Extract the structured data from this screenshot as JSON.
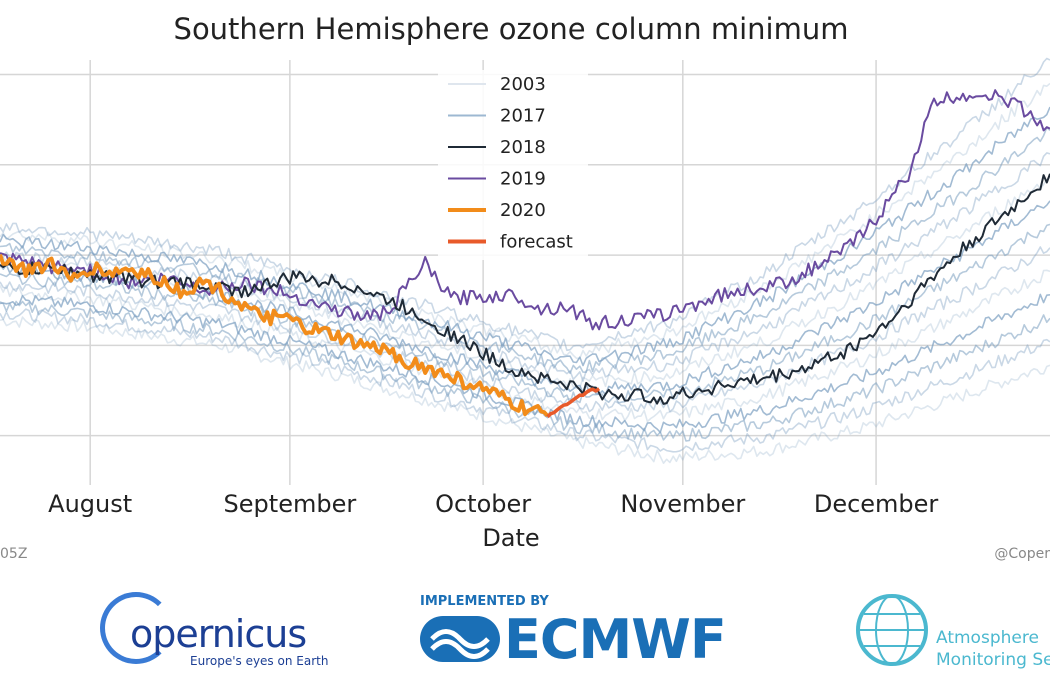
{
  "title": "Southern Hemisphere ozone column minimum",
  "footer": {
    "left": "05Z",
    "right": "@Coper"
  },
  "logos": {
    "copernicus": {
      "word": "opernicus",
      "tagline": "Europe's eyes on Earth"
    },
    "ecmwf": {
      "implemented_by": "IMPLEMENTED BY",
      "name": "ECMWF"
    },
    "cams": {
      "line1": "Atmosphere",
      "line2": "Monitoring Se"
    }
  },
  "colors": {
    "y2003": "#dfe6ee",
    "y2017": "#9db8d2",
    "y2018": "#1f2a36",
    "y2019": "#6a4ba0",
    "y2020": "#f28c1a",
    "forecast": "#e85a2a",
    "background_years": "#7a9ec0",
    "grid": "#d6d6d6"
  },
  "chart_data": {
    "type": "line",
    "title": "Southern Hemisphere ozone column minimum",
    "xlabel": "Date",
    "ylabel": "",
    "x_ticks": [
      "August",
      "September",
      "October",
      "November",
      "December"
    ],
    "x_range_days": [
      -14,
      149
    ],
    "y_range": [
      101,
      328
    ],
    "y_grid_values": [
      120,
      170,
      220,
      270,
      320
    ],
    "grid": true,
    "legend_position": "top-center",
    "legend": [
      "2003",
      "2017",
      "2018",
      "2019",
      "2020",
      "forecast"
    ],
    "series": [
      {
        "name": "2019",
        "x_days": [
          -14,
          -5,
          0,
          6,
          12,
          18,
          24,
          31,
          38,
          42,
          46,
          52,
          56,
          60,
          66,
          70,
          74,
          78,
          84,
          90,
          98,
          108,
          116,
          120,
          123,
          127,
          131,
          138,
          143,
          149
        ],
        "values": [
          218,
          213,
          212,
          205,
          207,
          201,
          205,
          198,
          190,
          186,
          188,
          215,
          196,
          197,
          198,
          190,
          192,
          182,
          184,
          188,
          198,
          205,
          220,
          232,
          245,
          265,
          305,
          310,
          305,
          290
        ]
      },
      {
        "name": "2018",
        "x_days": [
          -14,
          -5,
          0,
          8,
          16,
          24,
          32,
          40,
          50,
          58,
          64,
          72,
          80,
          90,
          98,
          104,
          110,
          118,
          124,
          130,
          137,
          143,
          149
        ],
        "values": [
          212,
          212,
          209,
          206,
          204,
          200,
          208,
          204,
          189,
          172,
          159,
          150,
          143,
          141,
          148,
          151,
          156,
          168,
          183,
          205,
          228,
          245,
          265
        ]
      },
      {
        "name": "2020",
        "x_days": [
          -14,
          -10,
          -6,
          -3,
          0,
          3,
          6,
          10,
          14,
          18,
          22,
          26,
          30,
          34,
          38,
          42,
          46,
          50,
          54,
          58,
          62,
          66,
          68,
          71
        ],
        "values": [
          219,
          211,
          216,
          205,
          213,
          210,
          212,
          208,
          200,
          205,
          196,
          186,
          185,
          179,
          175,
          170,
          167,
          160,
          155,
          150,
          144,
          137,
          134,
          131
        ]
      },
      {
        "name": "forecast",
        "x_days": [
          71,
          74,
          77,
          79
        ],
        "values": [
          131,
          138,
          144,
          146
        ]
      }
    ]
  }
}
